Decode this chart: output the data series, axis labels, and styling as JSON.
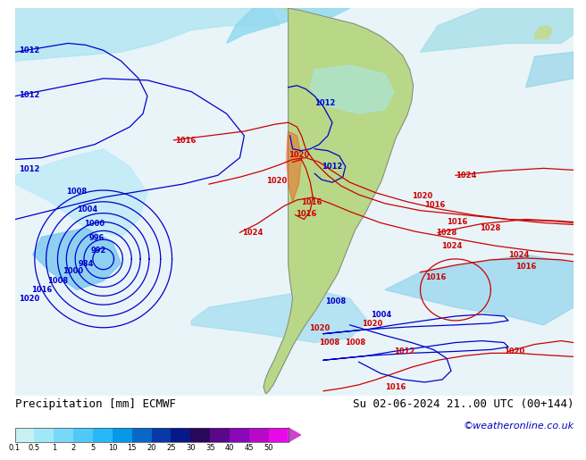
{
  "title_left": "Precipitation [mm] ECMWF",
  "title_right": "Su 02-06-2024 21..00 UTC (00+144)",
  "credit": "©weatheronline.co.uk",
  "colorbar_levels": [
    0.1,
    0.5,
    1,
    2,
    5,
    10,
    15,
    20,
    25,
    30,
    35,
    40,
    45,
    50
  ],
  "colorbar_colors": [
    "#c8f0f0",
    "#a0e8f8",
    "#78d8f8",
    "#50c8f8",
    "#28b8f8",
    "#0898e8",
    "#0868c8",
    "#0838a8",
    "#081888",
    "#280858",
    "#580888",
    "#8808b8",
    "#b808c8",
    "#e808e8"
  ],
  "map_bg": "#f0f0f0",
  "ocean_color": "#ddeef8",
  "land_color": "#c8dc98",
  "prec_light": "#b8ecec",
  "prec_medium": "#78d0f0",
  "prec_dark": "#3898d8",
  "blue_contour": "#0000cc",
  "red_contour": "#cc0000",
  "gray_border": "#888888",
  "label_fs": 9,
  "credit_fs": 8,
  "credit_color": "#0000bb",
  "bottom_bg": "#ffffff"
}
